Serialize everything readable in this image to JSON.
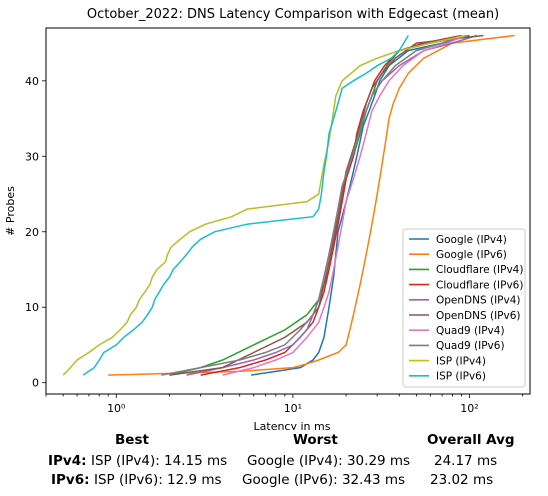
{
  "chart_data": {
    "type": "line",
    "title": "October_2022: DNS Latency Comparison with Edgecast (mean)",
    "xlabel": "Latency in ms",
    "ylabel": "# Probes",
    "xscale": "log",
    "xlim": [
      0.4,
      220
    ],
    "ylim": [
      -1.5,
      47
    ],
    "x_ticks": [
      1,
      10,
      100
    ],
    "x_tick_labels": [
      "10⁰",
      "10¹",
      "10²"
    ],
    "y_ticks": [
      0,
      10,
      20,
      30,
      40
    ],
    "y_tick_labels": [
      "0",
      "10",
      "20",
      "30",
      "40"
    ],
    "grid": false,
    "legend_position": "lower-right",
    "series": [
      {
        "name": "Google (IPv4)",
        "color": "#1f77b4",
        "points": [
          [
            5.8,
            1
          ],
          [
            8,
            1.5
          ],
          [
            11,
            2
          ],
          [
            13,
            3
          ],
          [
            14,
            4
          ],
          [
            15,
            6
          ],
          [
            15.5,
            8
          ],
          [
            16,
            10
          ],
          [
            16.5,
            12
          ],
          [
            17,
            14
          ],
          [
            17.5,
            17
          ],
          [
            18,
            20
          ],
          [
            19,
            22
          ],
          [
            20,
            24
          ],
          [
            21,
            26
          ],
          [
            22,
            28
          ],
          [
            23,
            30
          ],
          [
            24,
            32
          ],
          [
            25,
            34
          ],
          [
            27,
            36
          ],
          [
            29,
            38
          ],
          [
            31,
            40
          ],
          [
            35,
            42
          ],
          [
            45,
            44
          ],
          [
            70,
            45
          ],
          [
            100,
            46
          ]
        ]
      },
      {
        "name": "Google (IPv6)",
        "color": "#ff7f0e",
        "points": [
          [
            0.9,
            1
          ],
          [
            5,
            1.5
          ],
          [
            10,
            2
          ],
          [
            12,
            2.5
          ],
          [
            14,
            3
          ],
          [
            18,
            4
          ],
          [
            20,
            5
          ],
          [
            21,
            7
          ],
          [
            22,
            9
          ],
          [
            23,
            11
          ],
          [
            24,
            13
          ],
          [
            25,
            15
          ],
          [
            26,
            17
          ],
          [
            27,
            19
          ],
          [
            28,
            21
          ],
          [
            29,
            23
          ],
          [
            30,
            25
          ],
          [
            31,
            27
          ],
          [
            32,
            29
          ],
          [
            33,
            31
          ],
          [
            34,
            33
          ],
          [
            35,
            35
          ],
          [
            37,
            37
          ],
          [
            40,
            39
          ],
          [
            45,
            41
          ],
          [
            55,
            43
          ],
          [
            80,
            45
          ],
          [
            180,
            46
          ]
        ]
      },
      {
        "name": "Cloudflare (IPv4)",
        "color": "#2ca02c",
        "points": [
          [
            2,
            1
          ],
          [
            3,
            2
          ],
          [
            4,
            3
          ],
          [
            6,
            5
          ],
          [
            9,
            7
          ],
          [
            12,
            9
          ],
          [
            14,
            11
          ],
          [
            15,
            13
          ],
          [
            16,
            15
          ],
          [
            17,
            18
          ],
          [
            18,
            21
          ],
          [
            19,
            24
          ],
          [
            20,
            27
          ],
          [
            22,
            30
          ],
          [
            24,
            33
          ],
          [
            26,
            36
          ],
          [
            28,
            38
          ],
          [
            30,
            40
          ],
          [
            34,
            42
          ],
          [
            40,
            44
          ],
          [
            60,
            45
          ],
          [
            100,
            46
          ]
        ]
      },
      {
        "name": "Cloudflare (IPv6)",
        "color": "#d62728",
        "points": [
          [
            3,
            1
          ],
          [
            5,
            2
          ],
          [
            7,
            3
          ],
          [
            9,
            4
          ],
          [
            11,
            6
          ],
          [
            13,
            8
          ],
          [
            14,
            10
          ],
          [
            15,
            12
          ],
          [
            16,
            15
          ],
          [
            17,
            18
          ],
          [
            18,
            21
          ],
          [
            19,
            24
          ],
          [
            20,
            27
          ],
          [
            22,
            30
          ],
          [
            23,
            33
          ],
          [
            25,
            36
          ],
          [
            27,
            38
          ],
          [
            29,
            40
          ],
          [
            33,
            42
          ],
          [
            40,
            44
          ],
          [
            55,
            45
          ],
          [
            90,
            46
          ]
        ]
      },
      {
        "name": "OpenDNS (IPv4)",
        "color": "#9467bd",
        "points": [
          [
            2.5,
            1
          ],
          [
            4,
            2
          ],
          [
            6,
            3
          ],
          [
            8,
            4
          ],
          [
            10,
            5
          ],
          [
            12,
            7
          ],
          [
            13,
            9
          ],
          [
            14,
            11
          ],
          [
            15,
            14
          ],
          [
            16,
            17
          ],
          [
            17,
            20
          ],
          [
            18,
            23
          ],
          [
            19,
            26
          ],
          [
            21,
            29
          ],
          [
            23,
            32
          ],
          [
            25,
            35
          ],
          [
            28,
            38
          ],
          [
            32,
            40
          ],
          [
            40,
            42
          ],
          [
            55,
            44
          ],
          [
            80,
            45
          ],
          [
            110,
            46
          ]
        ]
      },
      {
        "name": "OpenDNS (IPv6)",
        "color": "#8c564b",
        "points": [
          [
            2,
            1
          ],
          [
            4,
            2
          ],
          [
            6,
            4
          ],
          [
            9,
            6
          ],
          [
            12,
            8
          ],
          [
            14,
            10
          ],
          [
            15,
            13
          ],
          [
            16,
            16
          ],
          [
            17,
            19
          ],
          [
            18,
            22
          ],
          [
            19,
            25
          ],
          [
            20,
            28
          ],
          [
            22,
            31
          ],
          [
            24,
            34
          ],
          [
            26,
            37
          ],
          [
            28,
            39
          ],
          [
            32,
            41
          ],
          [
            38,
            43
          ],
          [
            50,
            45
          ],
          [
            120,
            46
          ]
        ]
      },
      {
        "name": "Quad9 (IPv4)",
        "color": "#e377c2",
        "points": [
          [
            4,
            1
          ],
          [
            6,
            2
          ],
          [
            8,
            3
          ],
          [
            10,
            4
          ],
          [
            12,
            6
          ],
          [
            14,
            8
          ],
          [
            15,
            10
          ],
          [
            16,
            12
          ],
          [
            17,
            15
          ],
          [
            18,
            18
          ],
          [
            19,
            21
          ],
          [
            20,
            24
          ],
          [
            22,
            27
          ],
          [
            24,
            30
          ],
          [
            26,
            33
          ],
          [
            28,
            36
          ],
          [
            31,
            38
          ],
          [
            35,
            40
          ],
          [
            42,
            42
          ],
          [
            55,
            44
          ],
          [
            75,
            45
          ],
          [
            95,
            46
          ]
        ]
      },
      {
        "name": "Quad9 (IPv6)",
        "color": "#7f7f7f",
        "points": [
          [
            1.8,
            1
          ],
          [
            3,
            2
          ],
          [
            5,
            3
          ],
          [
            7,
            4
          ],
          [
            9,
            5
          ],
          [
            11,
            7
          ],
          [
            13,
            9
          ],
          [
            14,
            11
          ],
          [
            15,
            14
          ],
          [
            16,
            17
          ],
          [
            17,
            20
          ],
          [
            18,
            23
          ],
          [
            19,
            26
          ],
          [
            21,
            29
          ],
          [
            23,
            32
          ],
          [
            25,
            35
          ],
          [
            28,
            38
          ],
          [
            32,
            40
          ],
          [
            38,
            42
          ],
          [
            50,
            44
          ],
          [
            70,
            45
          ],
          [
            90,
            46
          ]
        ]
      },
      {
        "name": "ISP (IPv4)",
        "color": "#bcbd22",
        "points": [
          [
            0.5,
            1
          ],
          [
            0.55,
            2
          ],
          [
            0.6,
            3
          ],
          [
            0.7,
            4
          ],
          [
            0.8,
            5
          ],
          [
            0.95,
            6
          ],
          [
            1.05,
            7
          ],
          [
            1.15,
            8
          ],
          [
            1.2,
            9
          ],
          [
            1.3,
            10
          ],
          [
            1.35,
            11
          ],
          [
            1.45,
            12
          ],
          [
            1.55,
            13
          ],
          [
            1.6,
            14
          ],
          [
            1.7,
            15
          ],
          [
            1.9,
            16
          ],
          [
            1.95,
            17
          ],
          [
            2.05,
            18
          ],
          [
            2.3,
            19
          ],
          [
            2.6,
            20
          ],
          [
            3.2,
            21
          ],
          [
            4.5,
            22
          ],
          [
            5.5,
            23
          ],
          [
            12,
            24
          ],
          [
            14,
            25
          ],
          [
            14.5,
            27
          ],
          [
            15,
            29
          ],
          [
            16,
            32
          ],
          [
            16.5,
            34
          ],
          [
            17,
            36
          ],
          [
            17.5,
            38
          ],
          [
            19,
            40
          ],
          [
            24,
            42
          ],
          [
            30,
            43
          ],
          [
            40,
            44
          ],
          [
            60,
            45
          ],
          [
            95,
            46
          ]
        ]
      },
      {
        "name": "ISP (IPv6)",
        "color": "#17becf",
        "points": [
          [
            0.65,
            1
          ],
          [
            0.75,
            2
          ],
          [
            0.8,
            3
          ],
          [
            0.85,
            4
          ],
          [
            1,
            5
          ],
          [
            1.1,
            6
          ],
          [
            1.25,
            7
          ],
          [
            1.4,
            8
          ],
          [
            1.5,
            9
          ],
          [
            1.6,
            10
          ],
          [
            1.65,
            11
          ],
          [
            1.75,
            12
          ],
          [
            1.85,
            13
          ],
          [
            2,
            14
          ],
          [
            2.1,
            15
          ],
          [
            2.3,
            16
          ],
          [
            2.5,
            17
          ],
          [
            2.7,
            18
          ],
          [
            3,
            19
          ],
          [
            3.6,
            20
          ],
          [
            5.5,
            21
          ],
          [
            13,
            22
          ],
          [
            14,
            23
          ],
          [
            14.5,
            25
          ],
          [
            15,
            28
          ],
          [
            15.5,
            30
          ],
          [
            16,
            33
          ],
          [
            17,
            35
          ],
          [
            18,
            37
          ],
          [
            19,
            39
          ],
          [
            22,
            40
          ],
          [
            26,
            41
          ],
          [
            30,
            42
          ],
          [
            36,
            43
          ],
          [
            40,
            44
          ],
          [
            45,
            46
          ]
        ]
      }
    ]
  },
  "stats_table": {
    "headers": {
      "best": "Best",
      "worst": "Worst",
      "avg": "Overall Avg"
    },
    "rows": [
      {
        "label": "IPv4",
        "best": "ISP (IPv4): 14.15 ms",
        "worst": "Google (IPv4): 30.29 ms",
        "avg": "24.17 ms"
      },
      {
        "label": "IPv6",
        "best": "ISP (IPv6): 12.9 ms",
        "worst": "Google (IPv6): 32.43 ms",
        "avg": "23.02 ms"
      }
    ]
  }
}
